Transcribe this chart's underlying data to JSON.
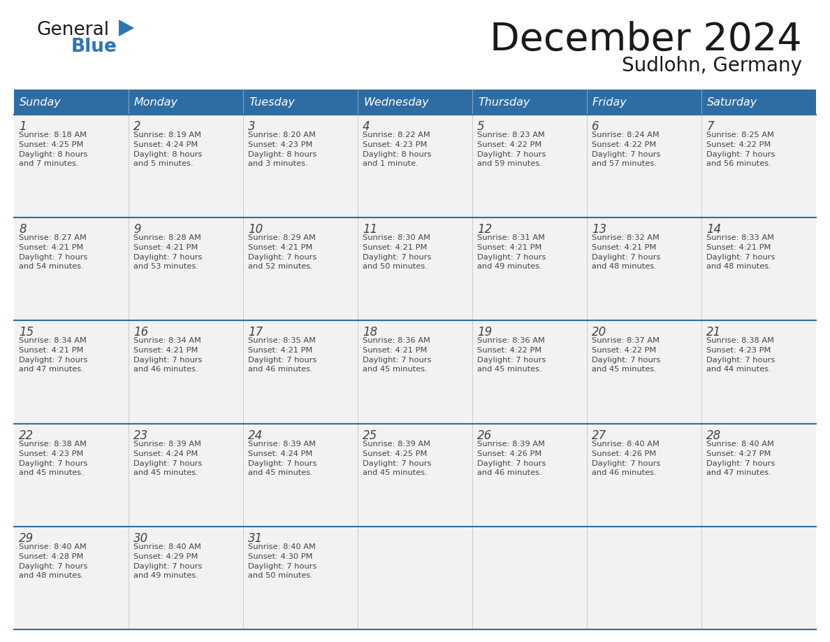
{
  "title": "December 2024",
  "subtitle": "Sudlohn, Germany",
  "days_of_week": [
    "Sunday",
    "Monday",
    "Tuesday",
    "Wednesday",
    "Thursday",
    "Friday",
    "Saturday"
  ],
  "header_bg": "#2E6DA4",
  "header_text": "#FFFFFF",
  "cell_bg": "#F2F2F2",
  "grid_line_color": "#2E6DA4",
  "text_color": "#444444",
  "title_color": "#1a1a1a",
  "logo_general_color": "#1a1a1a",
  "logo_blue_color": "#2E75B6",
  "calendar_data": [
    [
      {
        "day": 1,
        "sunrise": "8:18 AM",
        "sunset": "4:25 PM",
        "daylight": "8 hours\nand 7 minutes."
      },
      {
        "day": 2,
        "sunrise": "8:19 AM",
        "sunset": "4:24 PM",
        "daylight": "8 hours\nand 5 minutes."
      },
      {
        "day": 3,
        "sunrise": "8:20 AM",
        "sunset": "4:23 PM",
        "daylight": "8 hours\nand 3 minutes."
      },
      {
        "day": 4,
        "sunrise": "8:22 AM",
        "sunset": "4:23 PM",
        "daylight": "8 hours\nand 1 minute."
      },
      {
        "day": 5,
        "sunrise": "8:23 AM",
        "sunset": "4:22 PM",
        "daylight": "7 hours\nand 59 minutes."
      },
      {
        "day": 6,
        "sunrise": "8:24 AM",
        "sunset": "4:22 PM",
        "daylight": "7 hours\nand 57 minutes."
      },
      {
        "day": 7,
        "sunrise": "8:25 AM",
        "sunset": "4:22 PM",
        "daylight": "7 hours\nand 56 minutes."
      }
    ],
    [
      {
        "day": 8,
        "sunrise": "8:27 AM",
        "sunset": "4:21 PM",
        "daylight": "7 hours\nand 54 minutes."
      },
      {
        "day": 9,
        "sunrise": "8:28 AM",
        "sunset": "4:21 PM",
        "daylight": "7 hours\nand 53 minutes."
      },
      {
        "day": 10,
        "sunrise": "8:29 AM",
        "sunset": "4:21 PM",
        "daylight": "7 hours\nand 52 minutes."
      },
      {
        "day": 11,
        "sunrise": "8:30 AM",
        "sunset": "4:21 PM",
        "daylight": "7 hours\nand 50 minutes."
      },
      {
        "day": 12,
        "sunrise": "8:31 AM",
        "sunset": "4:21 PM",
        "daylight": "7 hours\nand 49 minutes."
      },
      {
        "day": 13,
        "sunrise": "8:32 AM",
        "sunset": "4:21 PM",
        "daylight": "7 hours\nand 48 minutes."
      },
      {
        "day": 14,
        "sunrise": "8:33 AM",
        "sunset": "4:21 PM",
        "daylight": "7 hours\nand 48 minutes."
      }
    ],
    [
      {
        "day": 15,
        "sunrise": "8:34 AM",
        "sunset": "4:21 PM",
        "daylight": "7 hours\nand 47 minutes."
      },
      {
        "day": 16,
        "sunrise": "8:34 AM",
        "sunset": "4:21 PM",
        "daylight": "7 hours\nand 46 minutes."
      },
      {
        "day": 17,
        "sunrise": "8:35 AM",
        "sunset": "4:21 PM",
        "daylight": "7 hours\nand 46 minutes."
      },
      {
        "day": 18,
        "sunrise": "8:36 AM",
        "sunset": "4:21 PM",
        "daylight": "7 hours\nand 45 minutes."
      },
      {
        "day": 19,
        "sunrise": "8:36 AM",
        "sunset": "4:22 PM",
        "daylight": "7 hours\nand 45 minutes."
      },
      {
        "day": 20,
        "sunrise": "8:37 AM",
        "sunset": "4:22 PM",
        "daylight": "7 hours\nand 45 minutes."
      },
      {
        "day": 21,
        "sunrise": "8:38 AM",
        "sunset": "4:23 PM",
        "daylight": "7 hours\nand 44 minutes."
      }
    ],
    [
      {
        "day": 22,
        "sunrise": "8:38 AM",
        "sunset": "4:23 PM",
        "daylight": "7 hours\nand 45 minutes."
      },
      {
        "day": 23,
        "sunrise": "8:39 AM",
        "sunset": "4:24 PM",
        "daylight": "7 hours\nand 45 minutes."
      },
      {
        "day": 24,
        "sunrise": "8:39 AM",
        "sunset": "4:24 PM",
        "daylight": "7 hours\nand 45 minutes."
      },
      {
        "day": 25,
        "sunrise": "8:39 AM",
        "sunset": "4:25 PM",
        "daylight": "7 hours\nand 45 minutes."
      },
      {
        "day": 26,
        "sunrise": "8:39 AM",
        "sunset": "4:26 PM",
        "daylight": "7 hours\nand 46 minutes."
      },
      {
        "day": 27,
        "sunrise": "8:40 AM",
        "sunset": "4:26 PM",
        "daylight": "7 hours\nand 46 minutes."
      },
      {
        "day": 28,
        "sunrise": "8:40 AM",
        "sunset": "4:27 PM",
        "daylight": "7 hours\nand 47 minutes."
      }
    ],
    [
      {
        "day": 29,
        "sunrise": "8:40 AM",
        "sunset": "4:28 PM",
        "daylight": "7 hours\nand 48 minutes."
      },
      {
        "day": 30,
        "sunrise": "8:40 AM",
        "sunset": "4:29 PM",
        "daylight": "7 hours\nand 49 minutes."
      },
      {
        "day": 31,
        "sunrise": "8:40 AM",
        "sunset": "4:30 PM",
        "daylight": "7 hours\nand 50 minutes."
      },
      null,
      null,
      null,
      null
    ]
  ]
}
